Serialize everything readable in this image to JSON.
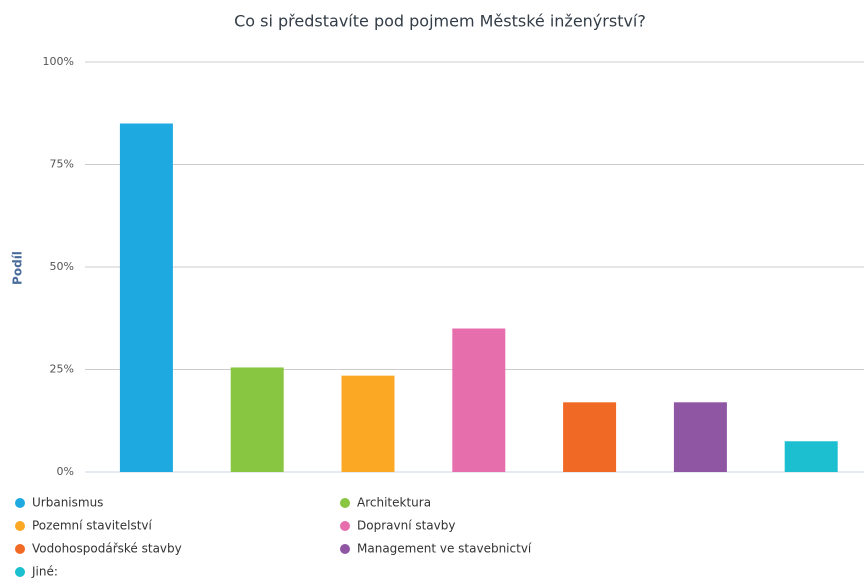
{
  "chart_data": {
    "type": "bar",
    "title": "Co si představíte pod pojmem Městské inženýrství?",
    "y_label": "Podíl",
    "ylim": [
      0,
      100
    ],
    "yticks": [
      {
        "value": 0,
        "label": "0%"
      },
      {
        "value": 25,
        "label": "25%"
      },
      {
        "value": 50,
        "label": "50%"
      },
      {
        "value": 75,
        "label": "75%"
      },
      {
        "value": 100,
        "label": "100%"
      }
    ],
    "grid": true,
    "legend": "bottom",
    "series": [
      {
        "name": "Urbanismus",
        "color": "#1ea9e1",
        "values": [
          85
        ]
      },
      {
        "name": "Architektura",
        "color": "#88c540",
        "values": [
          25.5
        ]
      },
      {
        "name": "Pozemní stavitelství",
        "color": "#fba925",
        "values": [
          23.5
        ]
      },
      {
        "name": "Dopravní stavby",
        "color": "#e76ead",
        "values": [
          35
        ]
      },
      {
        "name": "Vodohospodářské stavby",
        "color": "#f06a25",
        "values": [
          17
        ]
      },
      {
        "name": "Management ve stavebnictví",
        "color": "#8f56a3",
        "values": [
          17
        ]
      },
      {
        "name": "Jiné:",
        "color": "#1cbfcf",
        "values": [
          7.5
        ]
      }
    ]
  }
}
